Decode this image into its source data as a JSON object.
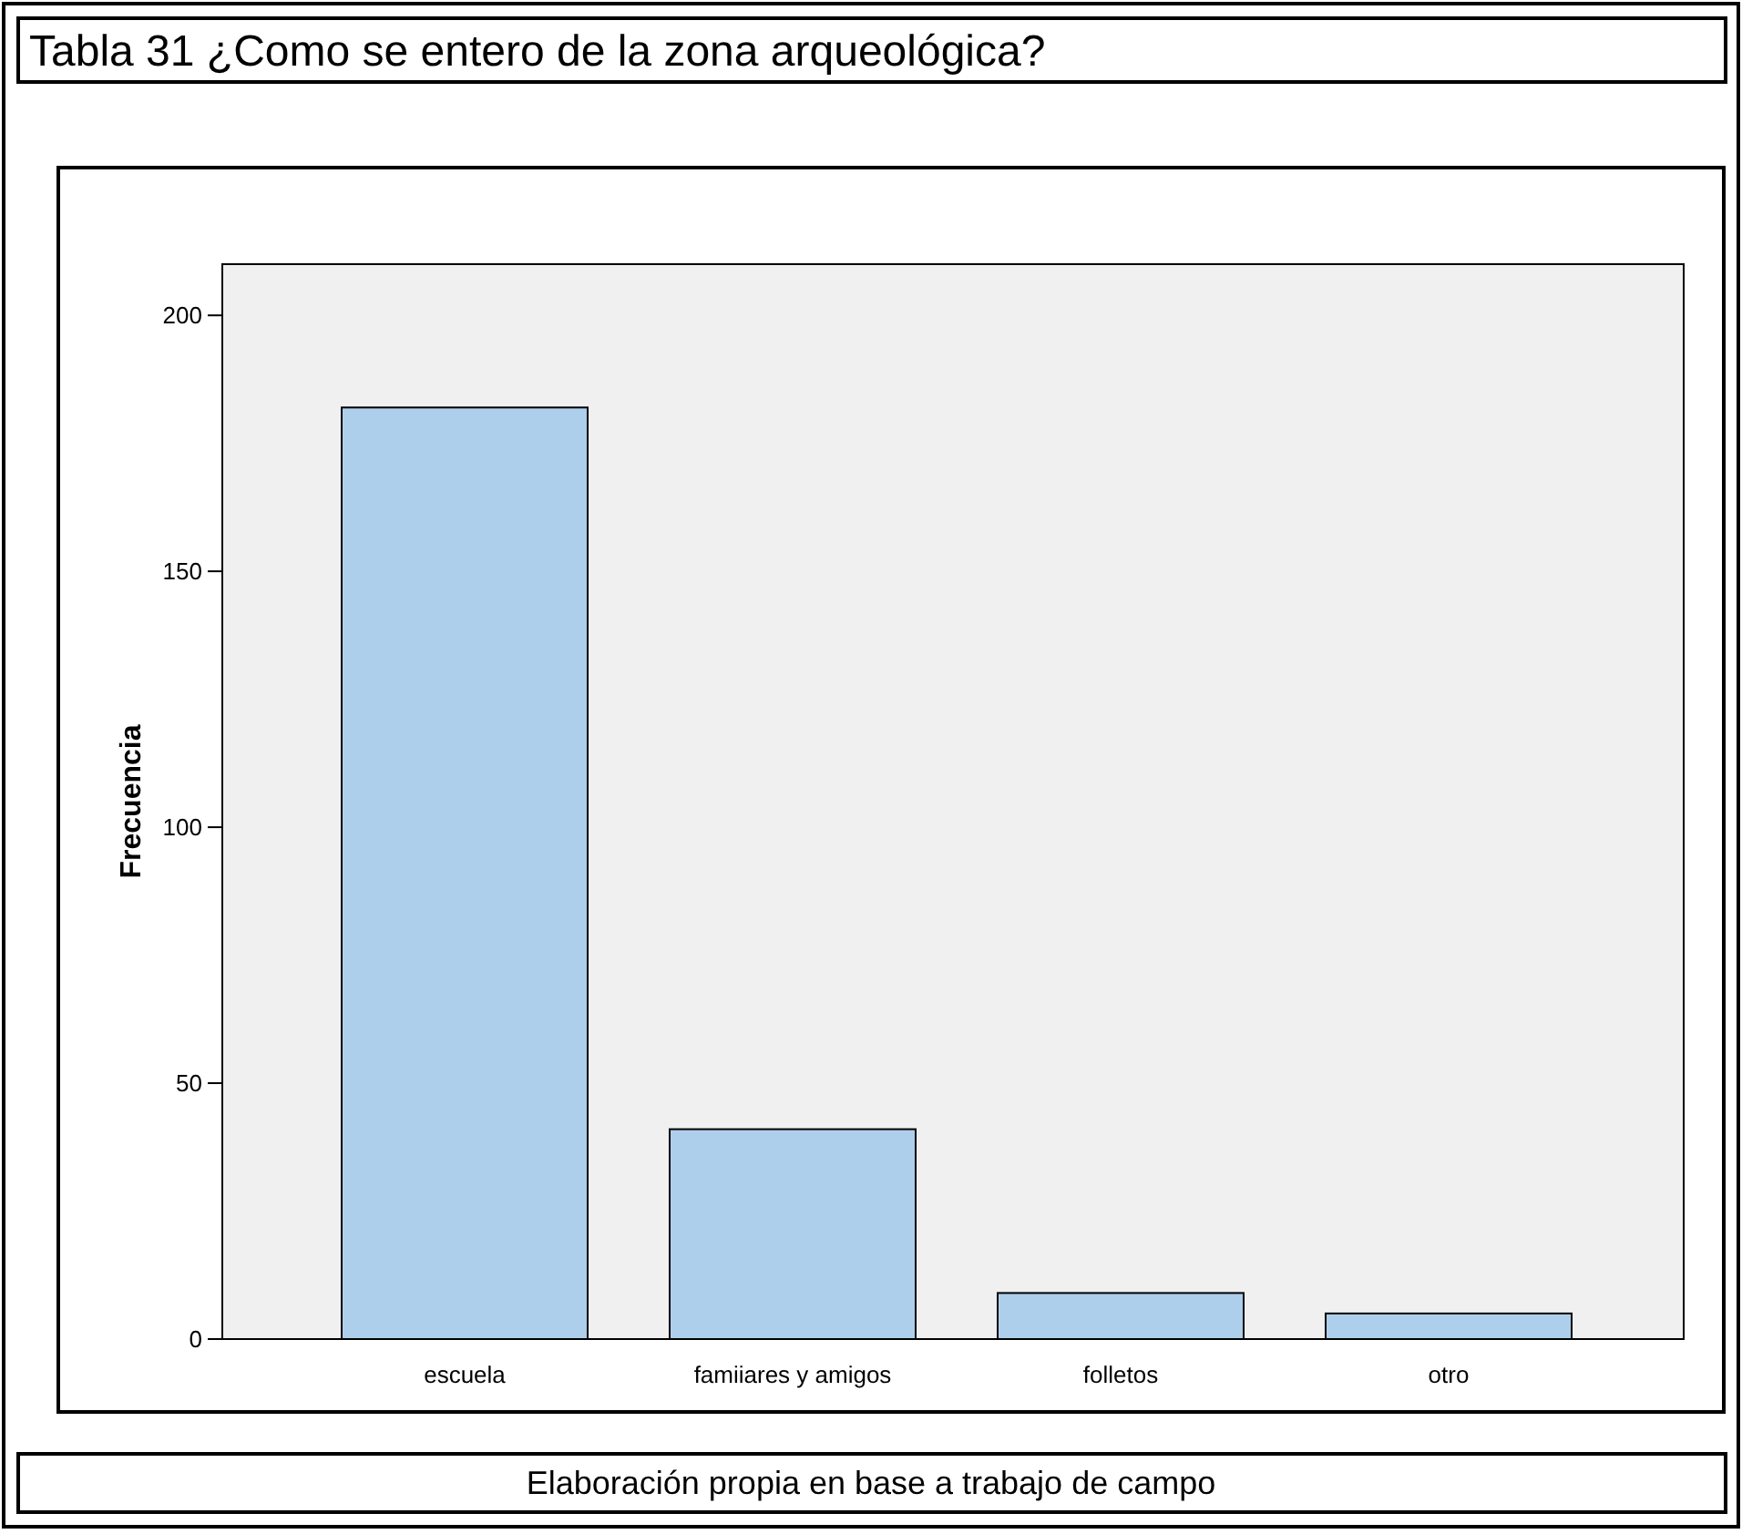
{
  "chart_data": {
    "type": "bar",
    "title": "Tabla 31 ¿Como se entero de la zona arqueológica?",
    "ylabel": "Frecuencia",
    "categories": [
      "escuela",
      "famiiares y amigos",
      "folletos",
      "otro"
    ],
    "values": [
      182,
      41,
      9,
      5
    ],
    "color": "#aecfec",
    "ylim": [
      0,
      210
    ],
    "yticks": [
      0,
      50,
      100,
      150,
      200
    ],
    "grid": false,
    "annotations": [
      "Elaboración propia en base a trabajo de campo"
    ]
  }
}
